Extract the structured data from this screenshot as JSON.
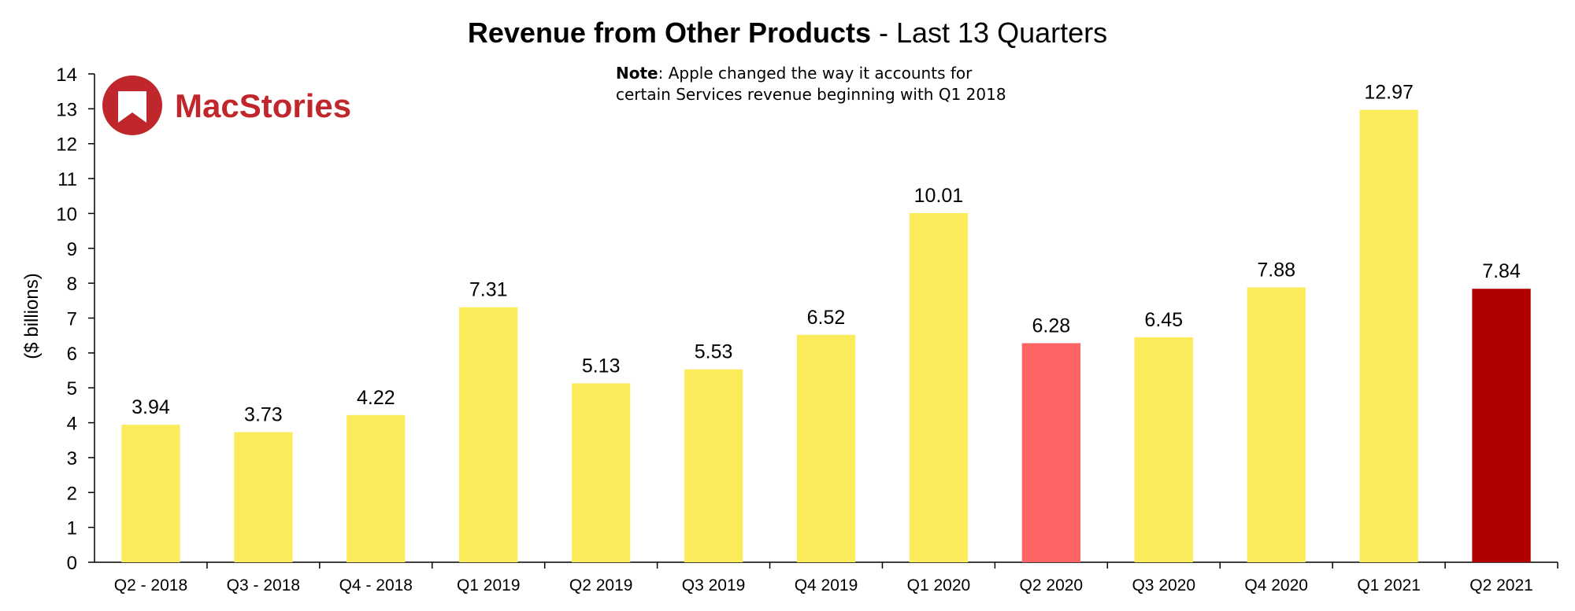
{
  "chart_data": {
    "type": "bar",
    "title_bold": "Revenue from Other Products",
    "title_rest": " - Last 13 Quarters",
    "ylabel": "($ billions)",
    "xlabel": "",
    "ylim": [
      0,
      14
    ],
    "y_ticks": [
      0,
      1,
      2,
      3,
      4,
      5,
      6,
      7,
      8,
      9,
      10,
      11,
      12,
      13,
      14
    ],
    "grid": false,
    "legend": "none",
    "categories": [
      "Q2 - 2018",
      "Q3 - 2018",
      "Q4 - 2018",
      "Q1 2019",
      "Q2 2019",
      "Q3 2019",
      "Q4 2019",
      "Q1 2020",
      "Q2 2020",
      "Q3 2020",
      "Q4 2020",
      "Q1 2021",
      "Q2 2021"
    ],
    "values": [
      3.94,
      3.73,
      4.22,
      7.31,
      5.13,
      5.53,
      6.52,
      10.01,
      6.28,
      6.45,
      7.88,
      12.97,
      7.84
    ],
    "value_labels": [
      "3.94",
      "3.73",
      "4.22",
      "7.31",
      "5.13",
      "5.53",
      "6.52",
      "10.01",
      "6.28",
      "6.45",
      "7.88",
      "12.97",
      "7.84"
    ],
    "bar_colors": [
      "#FCEB5A",
      "#FCEB5A",
      "#FCEB5A",
      "#FCEB5A",
      "#FCEB5A",
      "#FCEB5A",
      "#FCEB5A",
      "#FCEB5A",
      "#FF6464",
      "#FCEB5A",
      "#FCEB5A",
      "#FCEB5A",
      "#B00000"
    ],
    "note_bold": "Note",
    "note_line1": ": Apple changed the way it accounts for",
    "note_line2": "certain Services revenue beginning with Q1 2018"
  },
  "logo": {
    "text": "MacStories",
    "color": "#C0272D"
  }
}
